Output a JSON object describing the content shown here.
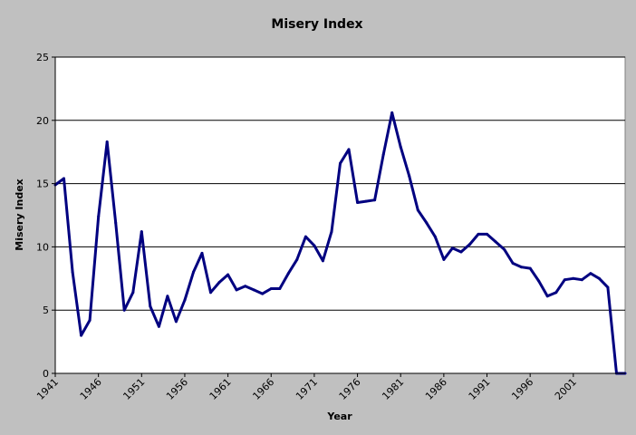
{
  "chart_data": {
    "type": "line",
    "title": "Misery Index",
    "xlabel": "Year",
    "ylabel": "Misery Index",
    "ylim": [
      0,
      25
    ],
    "y_ticks": [
      0,
      5,
      10,
      15,
      20,
      25
    ],
    "x_tick_labels": [
      "1941",
      "1946",
      "1951",
      "1956",
      "1961",
      "1966",
      "1971",
      "1976",
      "1981",
      "1986",
      "1991",
      "1996",
      "2001"
    ],
    "grid": "horizontal",
    "legend": "none",
    "series": [
      {
        "x": [
          1941,
          1942,
          1943,
          1944,
          1945,
          1946,
          1947,
          1948,
          1949,
          1950,
          1951,
          1952,
          1953,
          1954,
          1955,
          1956,
          1957,
          1958,
          1959,
          1960,
          1961,
          1962,
          1963,
          1964,
          1965,
          1966,
          1967,
          1968,
          1969,
          1970,
          1971,
          1972,
          1973,
          1974,
          1975,
          1976,
          1977,
          1978,
          1979,
          1980,
          1981,
          1982,
          1983,
          1984,
          1985,
          1986,
          1987,
          1988,
          1989,
          1990,
          1991,
          1992,
          1993,
          1994,
          1995,
          1996,
          1997,
          1998,
          1999,
          2000,
          2001,
          2002,
          2003,
          2004,
          2005,
          2006,
          2007
        ],
        "values": [
          14.9,
          15.4,
          8.0,
          3.0,
          4.2,
          12.4,
          18.3,
          11.9,
          5.0,
          6.4,
          11.2,
          5.3,
          3.7,
          6.1,
          4.1,
          5.8,
          8.0,
          9.5,
          6.4,
          7.2,
          7.8,
          6.6,
          6.9,
          6.6,
          6.3,
          6.7,
          6.7,
          7.9,
          9.0,
          10.8,
          10.1,
          8.9,
          11.2,
          16.6,
          17.7,
          13.5,
          13.6,
          13.7,
          17.3,
          20.6,
          17.9,
          15.6,
          12.9,
          11.9,
          10.8,
          9.0,
          9.9,
          9.6,
          10.2,
          11.0,
          11.0,
          10.4,
          9.8,
          8.7,
          8.4,
          8.3,
          7.3,
          6.1,
          6.4,
          7.4,
          7.5,
          7.4,
          7.9,
          7.5,
          6.8,
          0,
          0
        ]
      }
    ],
    "colors": {
      "frame": "#c0c0c0",
      "plot_background": "#ffffff",
      "line": "#000080",
      "grid": "#000000"
    }
  }
}
